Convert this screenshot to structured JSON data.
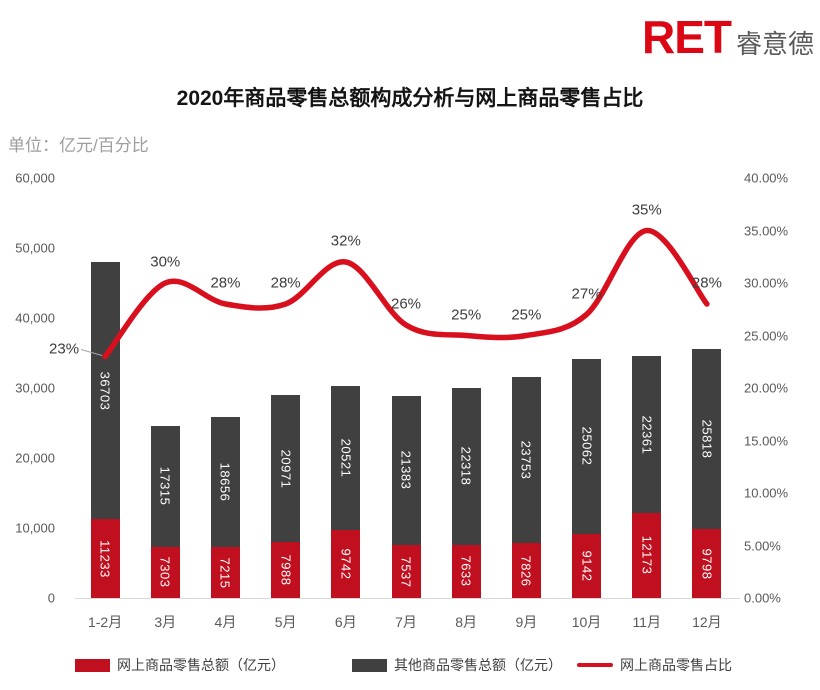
{
  "logo": {
    "text": "RET",
    "subtext": "睿意德"
  },
  "title": "2020年商品零售总额构成分析与网上商品零售占比",
  "unit_label": "单位：亿元/百分比",
  "colors": {
    "logo_red": "#dc0714",
    "bar_online_red": "#c00f1f",
    "bar_other_gray": "#404040",
    "line_red": "#d8101e",
    "axis_text": "#595959",
    "baseline_gray": "#d9d9d9",
    "leader_gray": "#a6a6a6"
  },
  "chart_data": {
    "type": "combo: stacked-bar + line",
    "categories": [
      "1-2月",
      "3月",
      "4月",
      "5月",
      "6月",
      "7月",
      "8月",
      "9月",
      "10月",
      "11月",
      "12月"
    ],
    "series": [
      {
        "name": "网上商品零售总额（亿元）",
        "type": "bar",
        "stack": "total",
        "axis": "left",
        "color": "#c00f1f",
        "values": [
          11233,
          7303,
          7215,
          7988,
          9742,
          7537,
          7633,
          7826,
          9142,
          12173,
          9798
        ]
      },
      {
        "name": "其他商品零售总额（亿元）",
        "type": "bar",
        "stack": "total",
        "axis": "left",
        "color": "#404040",
        "values": [
          36703,
          17315,
          18656,
          20971,
          20521,
          21383,
          22318,
          23753,
          25062,
          22361,
          25818
        ]
      },
      {
        "name": "网上商品零售占比",
        "type": "line",
        "axis": "right",
        "color": "#d8101e",
        "values_percent": [
          23,
          30,
          28,
          28,
          32,
          26,
          25,
          25,
          27,
          35,
          28
        ],
        "point_labels": [
          "23%",
          "30%",
          "28%",
          "28%",
          "32%",
          "26%",
          "25%",
          "25%",
          "27%",
          "35%",
          "28%"
        ]
      }
    ],
    "left_axis": {
      "min": 0,
      "max": 60000,
      "step": 10000,
      "tick_labels": [
        "0",
        "10,000",
        "20,000",
        "30,000",
        "40,000",
        "50,000",
        "60,000"
      ]
    },
    "right_axis": {
      "min": 0,
      "max": 40,
      "step": 5,
      "tick_labels": [
        "0.00%",
        "5.00%",
        "10.00%",
        "15.00%",
        "20.00%",
        "25.00%",
        "30.00%",
        "35.00%",
        "40.00%"
      ]
    },
    "grid": false,
    "legend_position": "bottom"
  }
}
